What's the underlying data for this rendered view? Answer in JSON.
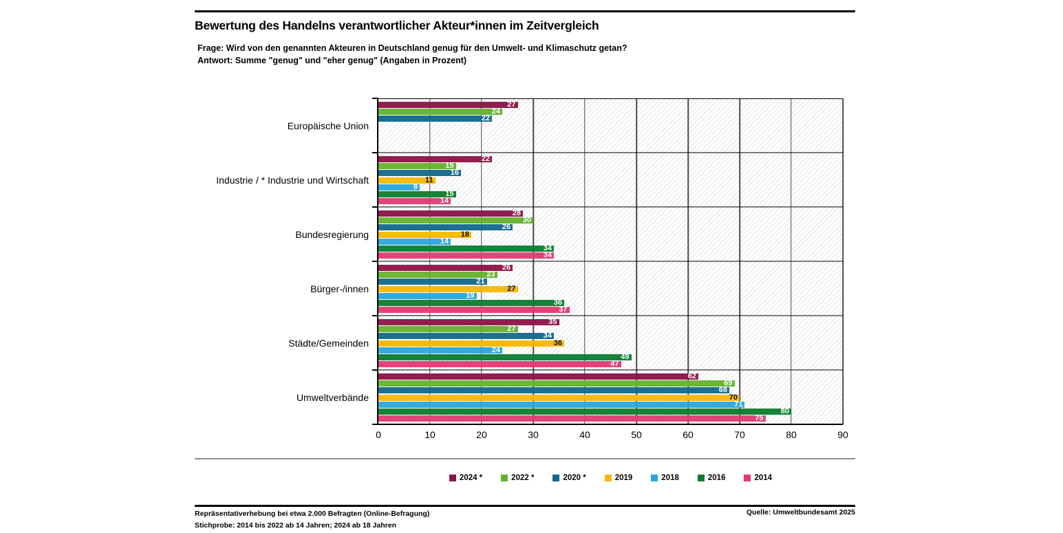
{
  "header": {
    "title": "Bewertung des Handelns verantwortlicher Akteur*innen im Zeitvergleich",
    "subtitle_line1": "Frage: Wird von den genannten Akteuren in Deutschland genug für den Umwelt- und Klimaschutz getan?",
    "subtitle_line2": "Antwort: Summe \"genug\" und \"eher genug\" (Angaben in Prozent)"
  },
  "chart_data": {
    "type": "bar",
    "orientation": "horizontal",
    "title": "Bewertung des Handelns verantwortlicher Akteur*innen im Zeitvergleich",
    "categories": [
      "Europäische Union",
      "Industrie / * Industrie und Wirtschaft",
      "Bundesregierung",
      "Bürger-/innen",
      "Städte/Gemeinden",
      "Umweltverbände"
    ],
    "series": [
      {
        "name": "2024 *",
        "color": "#8c1247",
        "label_color": "#ffffff",
        "values": [
          27,
          22,
          28,
          26,
          35,
          62
        ]
      },
      {
        "name": "2022 *",
        "color": "#65b22d",
        "label_color": "#ffffff",
        "values": [
          24,
          15,
          30,
          23,
          27,
          69
        ]
      },
      {
        "name": "2020 *",
        "color": "#12688c",
        "label_color": "#ffffff",
        "values": [
          22,
          16,
          26,
          21,
          34,
          68
        ]
      },
      {
        "name": "2019",
        "color": "#f6b800",
        "label_color": "#000000",
        "values": [
          null,
          11,
          18,
          27,
          36,
          70
        ]
      },
      {
        "name": "2018",
        "color": "#29a6dc",
        "label_color": "#ffffff",
        "values": [
          null,
          8,
          14,
          19,
          24,
          71
        ]
      },
      {
        "name": "2016",
        "color": "#0a7d2e",
        "label_color": "#ffffff",
        "values": [
          null,
          15,
          34,
          36,
          49,
          80
        ]
      },
      {
        "name": "2014",
        "color": "#e13a72",
        "label_color": "#ffffff",
        "values": [
          null,
          14,
          34,
          37,
          47,
          75
        ]
      }
    ],
    "x_axis": {
      "min": 0,
      "max": 90,
      "step": 10,
      "ticks": [
        "0",
        "10",
        "20",
        "30",
        "40",
        "50",
        "60",
        "70",
        "80",
        "90"
      ]
    },
    "grid": true,
    "plot_background": "hatched",
    "legend_position": "bottom"
  },
  "footer": {
    "note_line1": "Repräsentativerhebung bei etwa 2.000 Befragten (Online-Befragung)",
    "note_line2": "Stichprobe: 2014 bis 2022 ab 14 Jahren; 2024 ab 18 Jahren",
    "source": "Quelle: Umweltbundesamt 2025"
  }
}
